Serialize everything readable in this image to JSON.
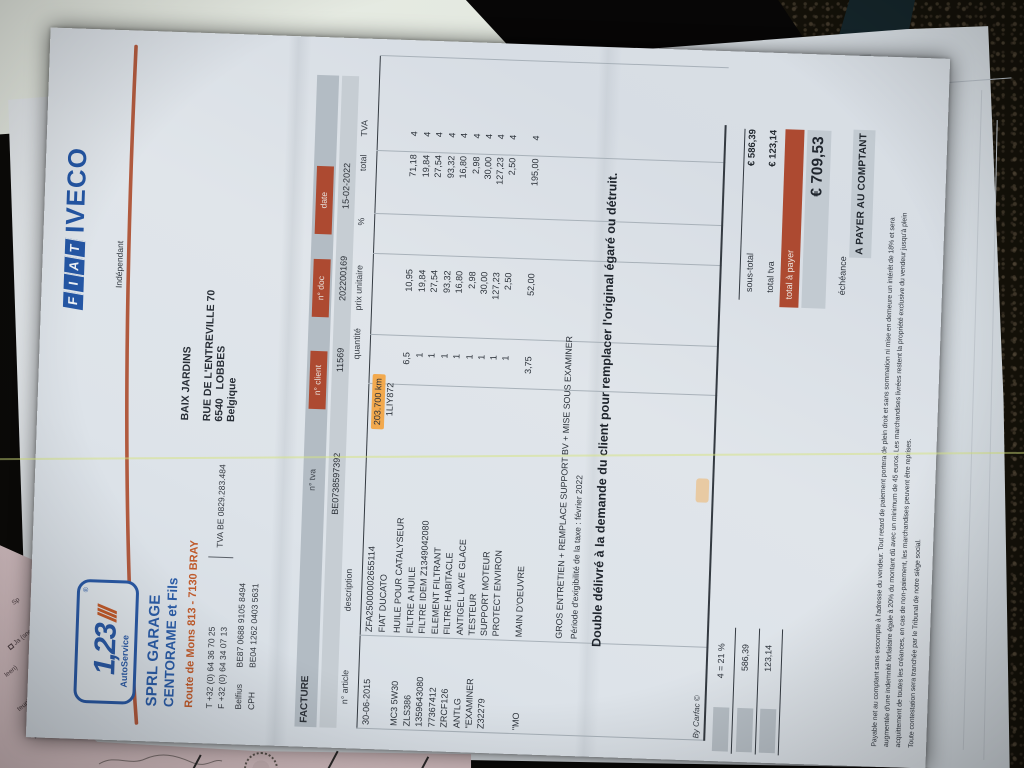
{
  "photo": {
    "glare_color": "#d5e47d",
    "background": {
      "asphalt": "#141109",
      "pale_surface": "#e9ede5",
      "sheets": "#e6eaee",
      "pink_form": "#d2bbbe"
    },
    "scrap_texts": [
      "Sp",
      "Ja (sne",
      "leen)",
      "teuning",
      "autonoom"
    ]
  },
  "invoice": {
    "accent_blue": "#2a59a4",
    "accent_orange": "#c05a2b",
    "accent_red": "#ad4a31",
    "logo123": {
      "digits": "1,23",
      "slashes": "///",
      "service": "AutoService",
      "reg": "®"
    },
    "company": {
      "line1": "SPRL GARAGE",
      "line2": "CENTORAME et Fils",
      "line3": "Route de Mons 813 - 7130 BRAY",
      "phone_t": "T +32 (0) 64 36 70 25",
      "phone_f": "F +32 (0) 64 34 07 13",
      "vat": "TVA BE 0829.283.484",
      "bank1_label": "Belfius",
      "bank1_value": "BE87 0688 9105 8494",
      "bank2_label": "CPH",
      "bank2_value": "BE04 1262 0403 5631"
    },
    "fiat_iveco": {
      "fiat_letters": [
        "F",
        "I",
        "A",
        "T"
      ],
      "iveco": "IVECO",
      "independant": "Indépendant"
    },
    "facture": {
      "title": "FACTURE",
      "tva_label": "n° tva",
      "tva_value": "BE0738597392",
      "client_label": "n° client",
      "client_value": "11569",
      "doc_label": "n° doc",
      "doc_value": "202200169",
      "date_label": "date",
      "date_value": "15-02-2022"
    },
    "customer": {
      "name": "BAIX JARDINS",
      "street": "RUE DE L'ENTREVILLE 70",
      "city": "6540   LOBBES",
      "country": "Belgique"
    },
    "table": {
      "headers": {
        "article": "n° article",
        "description": "description",
        "qty": "quantité",
        "unit": "prix unitaire",
        "pct": "%",
        "total": "total",
        "tva": "TVA"
      },
      "rows": [
        {
          "art": "30-06-2015",
          "desc": "ZFA25000002655114",
          "qty": "",
          "unit": "",
          "tot": "",
          "tva": "",
          "km": "203.700 km"
        },
        {
          "art": "",
          "desc": "FIAT DUCATO",
          "qty": "",
          "unit": "",
          "tot": "",
          "tva": "",
          "plate": "1LIY872"
        },
        {
          "art": "MC3 5W30",
          "desc": "HUILE POUR CATALYSEUR",
          "qty": "6,5",
          "unit": "10,95",
          "tot": "71,18",
          "tva": "4"
        },
        {
          "art": "ZLS386",
          "desc": "FILTRE A HUILE",
          "qty": "1",
          "unit": "19,84",
          "tot": "19,84",
          "tva": "4"
        },
        {
          "art": "1359643080",
          "desc": "FILTRE IDEM Z1349042080",
          "qty": "1",
          "unit": "27,54",
          "tot": "27,54",
          "tva": "4"
        },
        {
          "art": "77367412",
          "desc": "ELEMENT FILTRANT",
          "qty": "1",
          "unit": "93,32",
          "tot": "93,32",
          "tva": "4"
        },
        {
          "art": "ZRCF126",
          "desc": "FILTRE HABITACLE",
          "qty": "1",
          "unit": "16,80",
          "tot": "16,80",
          "tva": "4"
        },
        {
          "art": "ANTLG",
          "desc": "ANTIGEL LAVE GLACE",
          "qty": "1",
          "unit": "2,98",
          "tot": "2,98",
          "tva": "4"
        },
        {
          "art": "\"EXAMINER",
          "desc": "TESTEUR",
          "qty": "1",
          "unit": "30,00",
          "tot": "30,00",
          "tva": "4"
        },
        {
          "art": "Z32279",
          "desc": "SUPPORT MOTEUR",
          "qty": "1",
          "unit": "127,23",
          "tot": "127,23",
          "tva": "4"
        },
        {
          "art": "",
          "desc": "PROTECT ENVIRON",
          "qty": "1",
          "unit": "2,50",
          "tot": "2,50",
          "tva": "4"
        },
        {
          "art": "\"MO",
          "desc": "MAIN D'OEUVRE",
          "qty": "3,75",
          "unit": "52,00",
          "tot": "195,00",
          "tva": "4"
        }
      ],
      "note1": "GROS ENTRETIEN + REMPLACE SUPPORT BV + MISE SOUS EXAMINER",
      "note2": "Période d'exigibilité de la taxe : février 2022",
      "note3": "Double délivré à la demande du client pour remplacer l'original égaré ou détruit."
    },
    "totals": {
      "sous_total_label": "sous-total",
      "sous_total_value": "€ 586,39",
      "total_tva_label": "total tva",
      "total_tva_value": "€ 123,14",
      "total_a_payer_label": "total à payer",
      "total_a_payer_value": "€ 709,53",
      "echeance_label": "échéance",
      "payment_terms": "A PAYER AU COMPTANT"
    },
    "vat_recap": [
      "4 = 21 %",
      "586,39",
      "123,14"
    ],
    "byline": "By Carfac ©",
    "terms": [
      "Payable net au comptant sans escompte à l'adresse du vendeur. Tout retard de paiement portera de plein droit et sans sommation ni mise en demeure un intérêt de 18% et sera",
      "augmentée d'une indemnité forfaitaire égale à 20% du montant dû avec un minimum de 45 euros. Les marchandises livrées restent la propriété exclusive du vendeur jusqu'à plein",
      "acquittement de toutes les créances, en cas de non-paiement, les marchandises peuvent être reprises.",
      "Toute contestation sera tranchée par le Tribunal de notre siège social."
    ]
  }
}
